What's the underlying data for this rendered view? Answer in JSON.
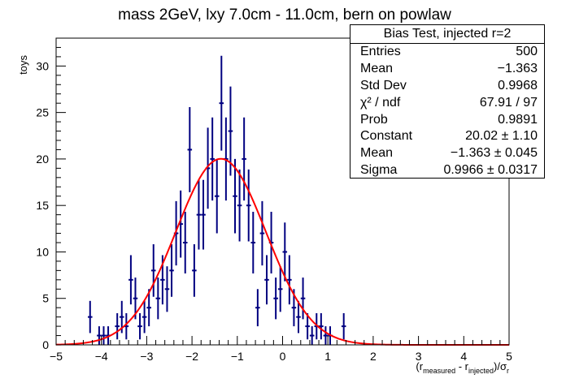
{
  "chart_data": {
    "type": "histogram",
    "title": "mass 2GeV, lxy 7.0cm - 11.0cm, bern on powlaw",
    "ylabel": "toys",
    "xlabel_parts": {
      "open": "(r",
      "sub1": "measured",
      "mid": " - r",
      "sub2": "injected",
      "close": ")/σ",
      "sub3": "r"
    },
    "xlim": [
      -5,
      5
    ],
    "ylim": [
      0,
      33
    ],
    "xticks": [
      -5,
      -4,
      -3,
      -2,
      -1,
      0,
      1,
      2,
      3,
      4,
      5
    ],
    "xtick_labels": [
      "−5",
      "−4",
      "−3",
      "−2",
      "−1",
      "0",
      "1",
      "2",
      "3",
      "4",
      "5"
    ],
    "yticks": [
      0,
      5,
      10,
      15,
      20,
      25,
      30
    ],
    "ytick_labels": [
      "0",
      "5",
      "10",
      "15",
      "20",
      "25",
      "30"
    ],
    "bin_width": 0.1,
    "series": [
      {
        "kind": "points-with-errors",
        "color": "#000080",
        "x": [
          -4.25,
          -4.05,
          -3.95,
          -3.85,
          -3.65,
          -3.55,
          -3.45,
          -3.35,
          -3.25,
          -3.15,
          -3.05,
          -2.95,
          -2.85,
          -2.75,
          -2.65,
          -2.55,
          -2.45,
          -2.35,
          -2.25,
          -2.15,
          -2.05,
          -1.95,
          -1.85,
          -1.75,
          -1.65,
          -1.55,
          -1.45,
          -1.35,
          -1.25,
          -1.15,
          -1.05,
          -0.95,
          -0.85,
          -0.75,
          -0.65,
          -0.55,
          -0.45,
          -0.35,
          -0.25,
          -0.15,
          -0.05,
          0.05,
          0.15,
          0.25,
          0.35,
          0.45,
          0.55,
          0.65,
          0.75,
          0.85,
          0.95,
          1.05,
          1.35
        ],
        "y": [
          3,
          1,
          1,
          1,
          2,
          3,
          2,
          7,
          5,
          2,
          3,
          4,
          8,
          5,
          7,
          6,
          8,
          12,
          13,
          11,
          21,
          8,
          14,
          14,
          19,
          20,
          16,
          26,
          20,
          23,
          16,
          15,
          20,
          15,
          11,
          4,
          12,
          7,
          11,
          5,
          6,
          10,
          7,
          4,
          3,
          5,
          2,
          1,
          2,
          2,
          1,
          1,
          2
        ],
        "errors": [
          1.73,
          1.0,
          1.0,
          1.0,
          1.41,
          1.73,
          1.41,
          2.65,
          2.24,
          1.41,
          1.73,
          2.0,
          2.83,
          2.24,
          2.65,
          2.45,
          2.83,
          3.46,
          3.61,
          3.32,
          4.58,
          2.83,
          3.74,
          3.74,
          4.36,
          4.47,
          4.0,
          5.1,
          4.47,
          4.8,
          4.0,
          3.87,
          4.47,
          3.87,
          3.32,
          2.0,
          3.46,
          2.65,
          3.32,
          2.24,
          2.45,
          3.16,
          2.65,
          2.0,
          1.73,
          2.24,
          1.41,
          1.0,
          1.41,
          1.41,
          1.0,
          1.0,
          1.41
        ]
      },
      {
        "kind": "gaussian-fit",
        "color": "#ff0000",
        "constant": 20.02,
        "mean": -1.363,
        "sigma": 0.9966,
        "x_range": [
          -5,
          5
        ]
      }
    ],
    "grid": false,
    "legend": "top-right"
  },
  "stats": {
    "title": "Bias Test, injected r=2",
    "rows": [
      {
        "label": "Entries",
        "value": "500"
      },
      {
        "label": "Mean",
        "value": "−1.363"
      },
      {
        "label": "Std Dev",
        "value": "0.9968"
      },
      {
        "label": "χ² / ndf",
        "value": "67.91 / 97"
      },
      {
        "label": "Prob",
        "value": "0.9891"
      },
      {
        "label": "Constant",
        "value": "20.02 ± 1.10"
      },
      {
        "label": "Mean",
        "value": "−1.363 ± 0.045"
      },
      {
        "label": "Sigma",
        "value": "0.9966 ± 0.0317"
      }
    ]
  }
}
